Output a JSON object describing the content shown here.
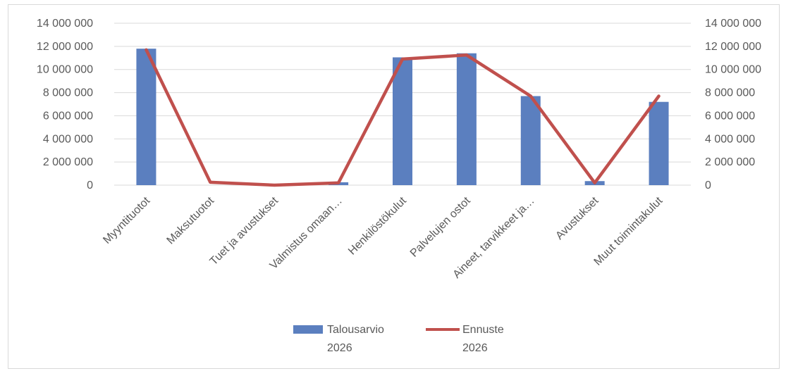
{
  "chart_data": {
    "type": "bar",
    "categories": [
      "Myyntituotot",
      "Maksutuotot",
      "Tuet ja avustukset",
      "Valmistus omaan…",
      "Henkilöstökulut",
      "Palvelujen ostot",
      "Aineet, tarvikkeet ja…",
      "Avustukset",
      "Muut toimintakulut"
    ],
    "series": [
      {
        "name_lines": [
          "Talousarvio",
          "2026"
        ],
        "kind": "bar",
        "color": "#5b7fbf",
        "axis": "left",
        "values": [
          11800000,
          0,
          0,
          250000,
          11050000,
          11400000,
          7700000,
          350000,
          7200000
        ]
      },
      {
        "name_lines": [
          "Ennuste",
          "2026"
        ],
        "kind": "line",
        "color": "#c0504d",
        "axis": "right",
        "values": [
          11700000,
          250000,
          0,
          200000,
          10900000,
          11250000,
          7700000,
          200000,
          7700000
        ]
      }
    ],
    "y_left": {
      "range": [
        0,
        14000000
      ],
      "tick_labels": [
        "0",
        "2 000 000",
        "4 000 000",
        "6 000 000",
        "8 000 000",
        "10 000 000",
        "12 000 000",
        "14 000 000"
      ]
    },
    "y_right": {
      "range": [
        0,
        14000000
      ],
      "tick_labels": [
        "0",
        "2 000 000",
        "4 000 000",
        "6 000 000",
        "8 000 000",
        "10 000 000",
        "12 000 000",
        "14 000 000"
      ]
    },
    "grid": true,
    "legend_position": "bottom"
  }
}
